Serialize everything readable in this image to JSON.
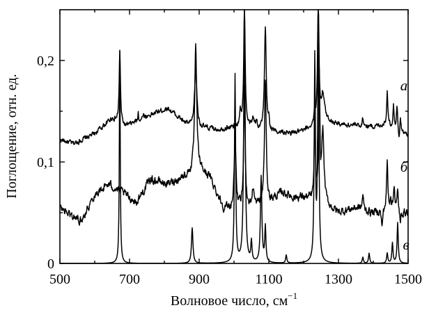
{
  "chart_data": {
    "type": "line",
    "xlabel": "Волновое число, см",
    "xlabel_sup": "−1",
    "ylabel": "Поглощение, отн. ед.",
    "xlim": [
      500,
      1500
    ],
    "ylim": [
      0,
      0.25
    ],
    "x_tick_values": [
      500,
      700,
      900,
      1100,
      1300,
      1500
    ],
    "x_tick_labels": [
      "500",
      "700",
      "900",
      "1100",
      "1300",
      "1500"
    ],
    "y_tick_values": [
      0,
      0.1,
      0.2
    ],
    "y_tick_labels": [
      "0",
      "0,1",
      "0,2"
    ],
    "grid": false,
    "series": [
      {
        "name": "а",
        "baseline": [
          [
            500,
            0.122
          ],
          [
            540,
            0.118
          ],
          [
            600,
            0.128
          ],
          [
            650,
            0.143
          ],
          [
            690,
            0.135
          ],
          [
            750,
            0.145
          ],
          [
            810,
            0.153
          ],
          [
            860,
            0.138
          ],
          [
            880,
            0.134
          ],
          [
            950,
            0.132
          ],
          [
            1000,
            0.134
          ],
          [
            1060,
            0.134
          ],
          [
            1100,
            0.13
          ],
          [
            1160,
            0.128
          ],
          [
            1200,
            0.13
          ],
          [
            1260,
            0.142
          ],
          [
            1300,
            0.137
          ],
          [
            1350,
            0.136
          ],
          [
            1400,
            0.135
          ],
          [
            1440,
            0.137
          ],
          [
            1500,
            0.126
          ]
        ],
        "noise": 0.0025,
        "peaks": [
          [
            672,
            0.07,
            2.2
          ],
          [
            725,
            0.008,
            1.2
          ],
          [
            740,
            0.006,
            1.2
          ],
          [
            890,
            0.06,
            4
          ],
          [
            1018,
            0.015,
            3
          ],
          [
            1030,
            0.12,
            2.5
          ],
          [
            1055,
            0.01,
            2.5
          ],
          [
            1065,
            0.006,
            2
          ],
          [
            1090,
            0.1,
            3
          ],
          [
            1100,
            0.01,
            2
          ],
          [
            1232,
            0.012,
            2
          ],
          [
            1242,
            0.12,
            2.5
          ],
          [
            1255,
            0.025,
            5
          ],
          [
            1370,
            0.008,
            2
          ],
          [
            1440,
            0.032,
            2
          ],
          [
            1458,
            0.022,
            2
          ],
          [
            1468,
            0.022,
            2
          ],
          [
            1478,
            0.012,
            2
          ]
        ],
        "negative_peaks": [
          [
            1474,
            0.012,
            1.5
          ]
        ]
      },
      {
        "name": "б",
        "baseline": [
          [
            500,
            0.055
          ],
          [
            530,
            0.048
          ],
          [
            560,
            0.042
          ],
          [
            600,
            0.068
          ],
          [
            640,
            0.078
          ],
          [
            680,
            0.07
          ],
          [
            720,
            0.06
          ],
          [
            760,
            0.083
          ],
          [
            810,
            0.078
          ],
          [
            860,
            0.086
          ],
          [
            900,
            0.093
          ],
          [
            930,
            0.085
          ],
          [
            970,
            0.055
          ],
          [
            1000,
            0.053
          ],
          [
            1030,
            0.055
          ],
          [
            1060,
            0.056
          ],
          [
            1100,
            0.06
          ],
          [
            1140,
            0.07
          ],
          [
            1170,
            0.065
          ],
          [
            1200,
            0.065
          ],
          [
            1260,
            0.058
          ],
          [
            1300,
            0.05
          ],
          [
            1350,
            0.055
          ],
          [
            1400,
            0.05
          ],
          [
            1440,
            0.055
          ],
          [
            1500,
            0.05
          ]
        ],
        "noise": 0.004,
        "peaks": [
          [
            890,
            0.12,
            3.5
          ],
          [
            1003,
            0.07,
            3
          ],
          [
            1030,
            0.12,
            2.5
          ],
          [
            1055,
            0.018,
            3
          ],
          [
            1090,
            0.12,
            3
          ],
          [
            1232,
            0.085,
            2
          ],
          [
            1245,
            0.12,
            2
          ],
          [
            1255,
            0.07,
            4
          ],
          [
            1370,
            0.015,
            2
          ],
          [
            1440,
            0.045,
            2
          ],
          [
            1450,
            0.012,
            2
          ],
          [
            1460,
            0.025,
            2
          ],
          [
            1470,
            0.018,
            2
          ]
        ],
        "negative_peaks": [
          [
            1425,
            0.02,
            2
          ],
          [
            1478,
            0.015,
            2
          ]
        ]
      },
      {
        "name": "в",
        "baseline": [
          [
            500,
            0.0
          ],
          [
            1500,
            0.0
          ]
        ],
        "noise": 0.0,
        "peaks": [
          [
            672,
            0.21,
            1.5
          ],
          [
            880,
            0.035,
            2.5
          ],
          [
            1003,
            0.185,
            2
          ],
          [
            1030,
            0.25,
            2.5
          ],
          [
            1050,
            0.02,
            2
          ],
          [
            1078,
            0.085,
            2.5
          ],
          [
            1090,
            0.035,
            2
          ],
          [
            1150,
            0.008,
            2
          ],
          [
            1232,
            0.2,
            2
          ],
          [
            1242,
            0.25,
            2
          ],
          [
            1370,
            0.006,
            2
          ],
          [
            1388,
            0.01,
            2
          ],
          [
            1440,
            0.01,
            2
          ],
          [
            1455,
            0.02,
            2
          ],
          [
            1470,
            0.04,
            2
          ]
        ],
        "negative_peaks": []
      }
    ]
  }
}
